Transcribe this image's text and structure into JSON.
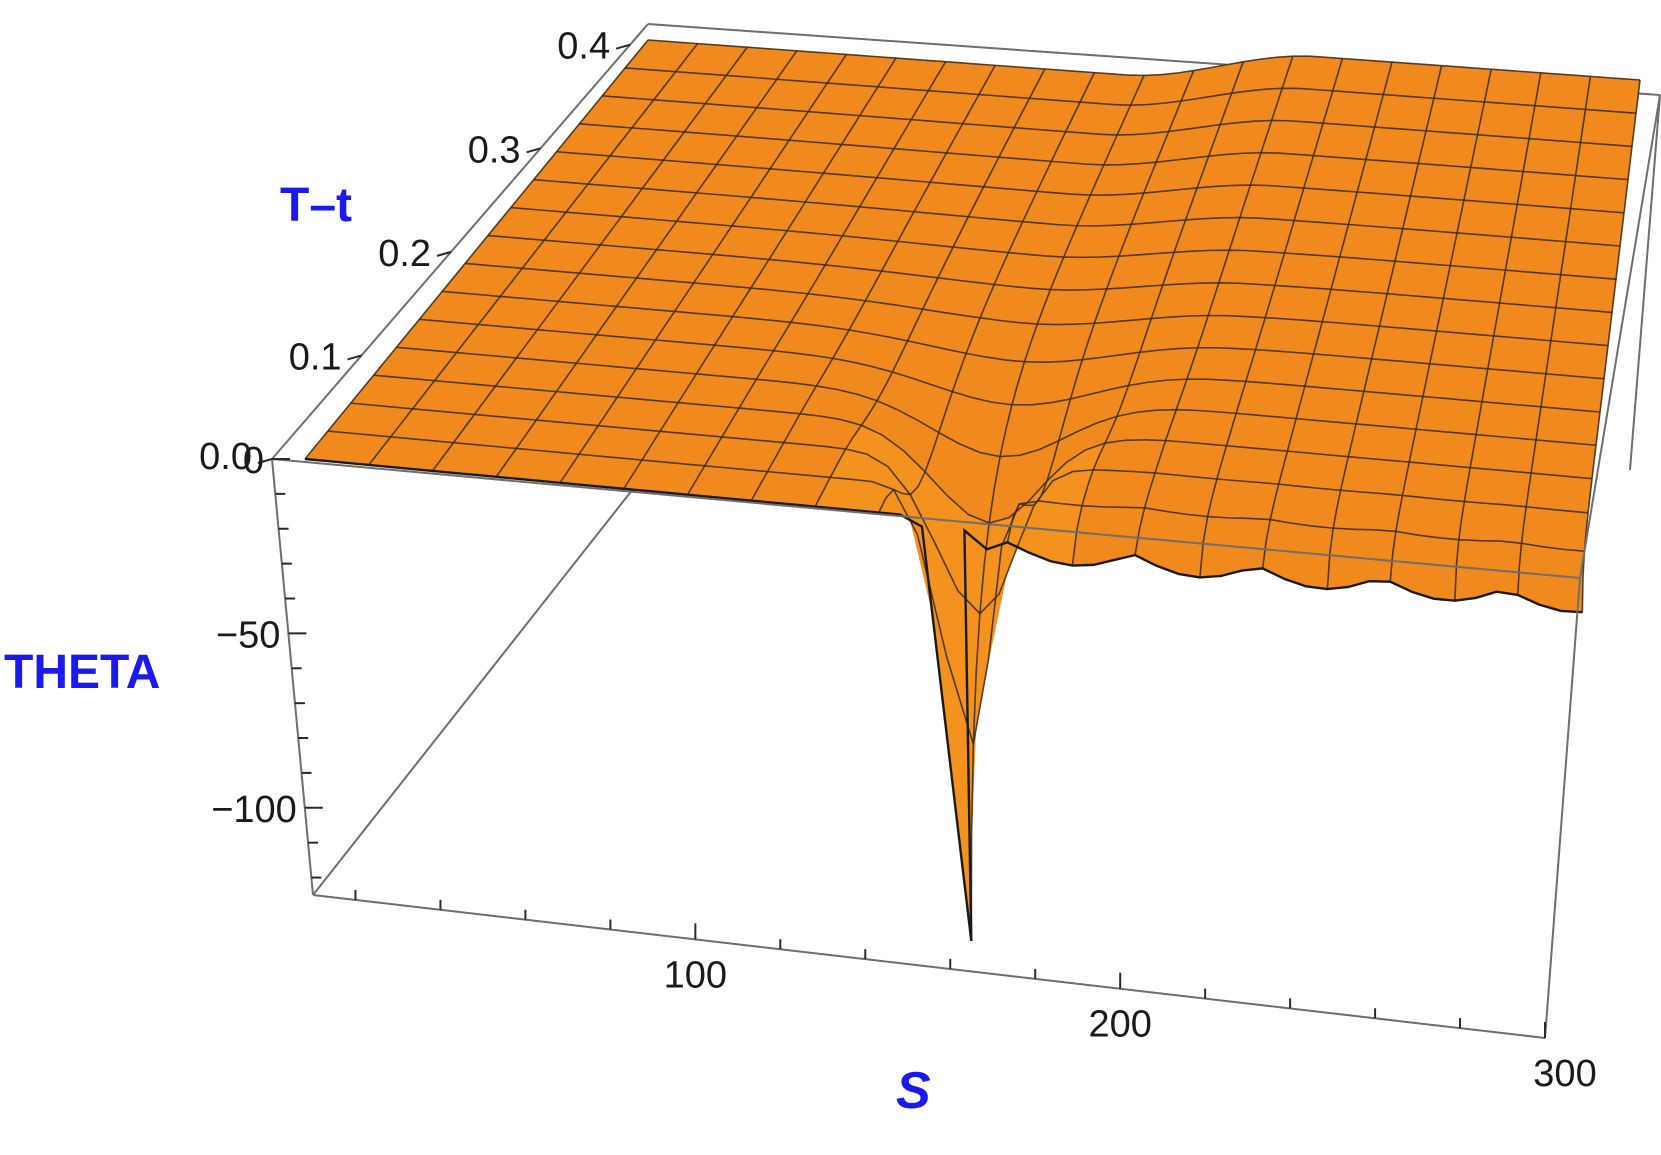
{
  "chart_data": {
    "type": "surface3d",
    "title": "",
    "xlabel": "S",
    "ylabel": "T–t",
    "zlabel": "THETA",
    "x_ticks": [
      "100",
      "200",
      "300"
    ],
    "y_ticks": [
      "0.0",
      "0.1",
      "0.2",
      "0.3",
      "0.4"
    ],
    "z_ticks": [
      "0",
      "−50",
      "−100"
    ],
    "xlim": [
      10,
      300
    ],
    "ylim": [
      0,
      0.42
    ],
    "zlim": [
      -125,
      0
    ],
    "surface_color": "#f08a1e",
    "highlight_color": "#ffa52e",
    "shadow_color": "#c96a10",
    "box_color": "#6e6e6e",
    "label_color": "#1a1aee",
    "features": {
      "plateau_value": 0,
      "dip_center_S": 155,
      "dip_min_value": -120,
      "step_up_S_range": [
        150,
        205
      ],
      "mesh_lines_S": 20,
      "mesh_lines_t": 15
    }
  }
}
